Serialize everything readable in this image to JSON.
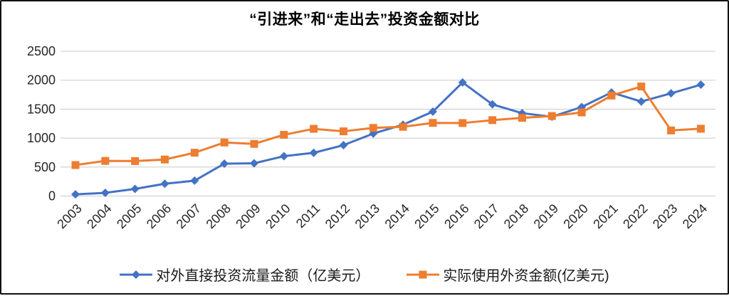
{
  "title": "“引进来”和“走出去”投资金额对比",
  "colors": {
    "ofdi": "#4472C4",
    "fdi": "#ED7D31",
    "gridline": "#C9C9C9",
    "tick_text": "#262626"
  },
  "chart_data": {
    "type": "line",
    "title": "“引进来”和“走出去”投资金额对比",
    "x": [
      "2003",
      "2004",
      "2005",
      "2006",
      "2007",
      "2008",
      "2009",
      "2010",
      "2011",
      "2012",
      "2013",
      "2014",
      "2015",
      "2016",
      "2017",
      "2018",
      "2019",
      "2020",
      "2021",
      "2022",
      "2023",
      "2024"
    ],
    "series": [
      {
        "name": "对外直接投资流量金额（亿美元）",
        "color": "#4472C4",
        "marker": "diamond",
        "values": [
          28.5,
          55.0,
          122.6,
          211.6,
          265.1,
          559.1,
          565.3,
          688.1,
          746.5,
          878.0,
          1078.4,
          1231.2,
          1456.7,
          1961.5,
          1582.9,
          1430.4,
          1369.1,
          1537.1,
          1788.2,
          1631.2,
          1772.9,
          1922.1
        ]
      },
      {
        "name": "实际使用外资金额(亿美元)",
        "color": "#ED7D31",
        "marker": "square",
        "values": [
          535.1,
          606.3,
          603.3,
          630.2,
          747.7,
          924.0,
          900.3,
          1057.4,
          1160.1,
          1117.2,
          1175.9,
          1195.6,
          1262.7,
          1260.0,
          1310.4,
          1349.7,
          1381.4,
          1443.7,
          1734.8,
          1891.3,
          1132.7,
          1162.0
        ]
      }
    ],
    "ylim": [
      0,
      2500
    ],
    "yticks": [
      0,
      500,
      1000,
      1500,
      2000,
      2500
    ],
    "xlabel": "",
    "ylabel": "",
    "grid": "horizontal",
    "legend_position": "bottom"
  }
}
